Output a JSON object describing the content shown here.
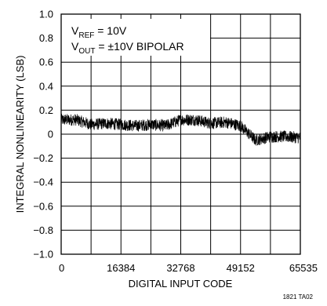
{
  "chart_data": {
    "type": "line",
    "xlabel": "DIGITAL INPUT CODE",
    "ylabel": "INTEGRAL NONLINEARITY (LSB)",
    "xlim": [
      0,
      65535
    ],
    "ylim": [
      -1.0,
      1.0
    ],
    "x_ticks": [
      0,
      16384,
      32768,
      49152,
      65535
    ],
    "x_tick_labels": [
      "0",
      "16384",
      "32768",
      "49152",
      "65535"
    ],
    "y_ticks": [
      1.0,
      0.8,
      0.6,
      0.4,
      0.2,
      0,
      -0.2,
      -0.4,
      -0.6,
      -0.8,
      -1.0
    ],
    "y_tick_labels": [
      "1.0",
      "0.8",
      "0.6",
      "0.4",
      "0.2",
      "0",
      "−0.2",
      "−0.4",
      "−0.6",
      "−0.8",
      "−1.0"
    ],
    "grid": true,
    "annotation": {
      "line1_main": "V",
      "line1_sub": "REF",
      "line1_rest": " = 10V",
      "line2_main": "V",
      "line2_sub": "OUT",
      "line2_rest": " = ±10V BIPOLAR"
    },
    "series": [
      {
        "color": "#000000",
        "x": [
          0,
          4096,
          8192,
          12288,
          16384,
          20480,
          24576,
          28672,
          32768,
          36864,
          40960,
          45056,
          49152,
          53248,
          57344,
          61440,
          65535
        ],
        "y": [
          0.12,
          0.12,
          0.08,
          0.09,
          0.08,
          0.07,
          0.08,
          0.07,
          0.12,
          0.12,
          0.09,
          0.1,
          0.07,
          -0.05,
          -0.02,
          -0.02,
          -0.03
        ],
        "band": 0.05
      }
    ]
  },
  "footer_code": "1821 TA02"
}
